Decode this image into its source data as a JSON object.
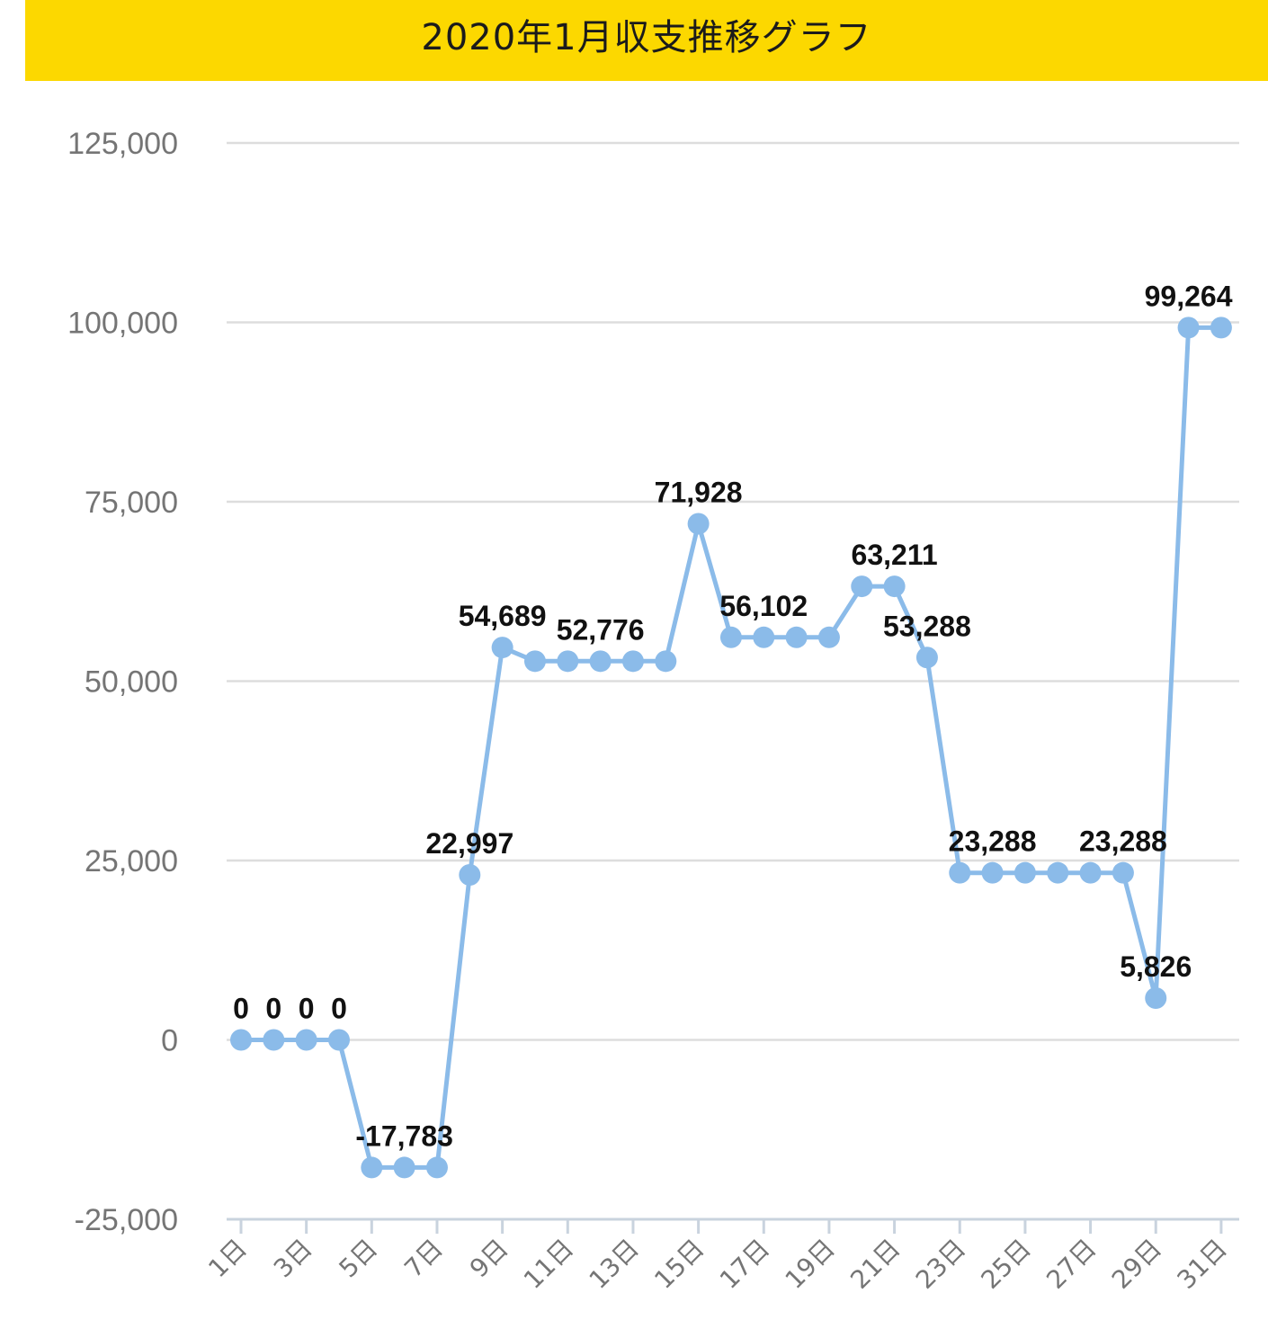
{
  "title": "2020年1月収支推移グラフ",
  "colors": {
    "banner": "#fcd800",
    "line": "#8bbbe9",
    "grid": "#dddddd",
    "axis": "#c9d3de",
    "tick_text": "#757575",
    "label_text": "#111111"
  },
  "chart_data": {
    "type": "line",
    "title": "2020年1月収支推移グラフ",
    "xlabel": "",
    "ylabel": "",
    "ylim": [
      -25000,
      125000
    ],
    "y_ticks": [
      -25000,
      0,
      25000,
      50000,
      75000,
      100000,
      125000
    ],
    "y_tick_labels": [
      "-25,000",
      "0",
      "25,000",
      "50,000",
      "75,000",
      "100,000",
      "125,000"
    ],
    "grid": true,
    "legend": "none",
    "categories": [
      "1日",
      "2日",
      "3日",
      "4日",
      "5日",
      "6日",
      "7日",
      "8日",
      "9日",
      "10日",
      "11日",
      "12日",
      "13日",
      "14日",
      "15日",
      "16日",
      "17日",
      "18日",
      "19日",
      "20日",
      "21日",
      "22日",
      "23日",
      "24日",
      "25日",
      "26日",
      "27日",
      "28日",
      "29日",
      "30日",
      "31日"
    ],
    "x_tick_labels": [
      "1日",
      "3日",
      "5日",
      "7日",
      "9日",
      "11日",
      "13日",
      "15日",
      "17日",
      "19日",
      "21日",
      "23日",
      "25日",
      "27日",
      "29日",
      "31日"
    ],
    "series": [
      {
        "values": [
          0,
          0,
          0,
          0,
          -17783,
          -17783,
          -17783,
          22997,
          54689,
          52776,
          52776,
          52776,
          52776,
          52776,
          71928,
          56102,
          56102,
          56102,
          56102,
          63211,
          63211,
          53288,
          23288,
          23288,
          23288,
          23288,
          23288,
          23288,
          5826,
          99264,
          99264
        ]
      }
    ],
    "data_labels": [
      {
        "index": 0,
        "text": "0"
      },
      {
        "index": 1,
        "text": "0"
      },
      {
        "index": 2,
        "text": "0"
      },
      {
        "index": 3,
        "text": "0"
      },
      {
        "index": 5,
        "text": "-17,783"
      },
      {
        "index": 7,
        "text": "22,997"
      },
      {
        "index": 8,
        "text": "54,689"
      },
      {
        "index": 11,
        "text": "52,776"
      },
      {
        "index": 14,
        "text": "71,928"
      },
      {
        "index": 16,
        "text": "56,102"
      },
      {
        "index": 20,
        "text": "63,211"
      },
      {
        "index": 21,
        "text": "53,288"
      },
      {
        "index": 23,
        "text": "23,288"
      },
      {
        "index": 27,
        "text": "23,288"
      },
      {
        "index": 28,
        "text": "5,826"
      },
      {
        "index": 29,
        "text": "99,264"
      }
    ]
  }
}
